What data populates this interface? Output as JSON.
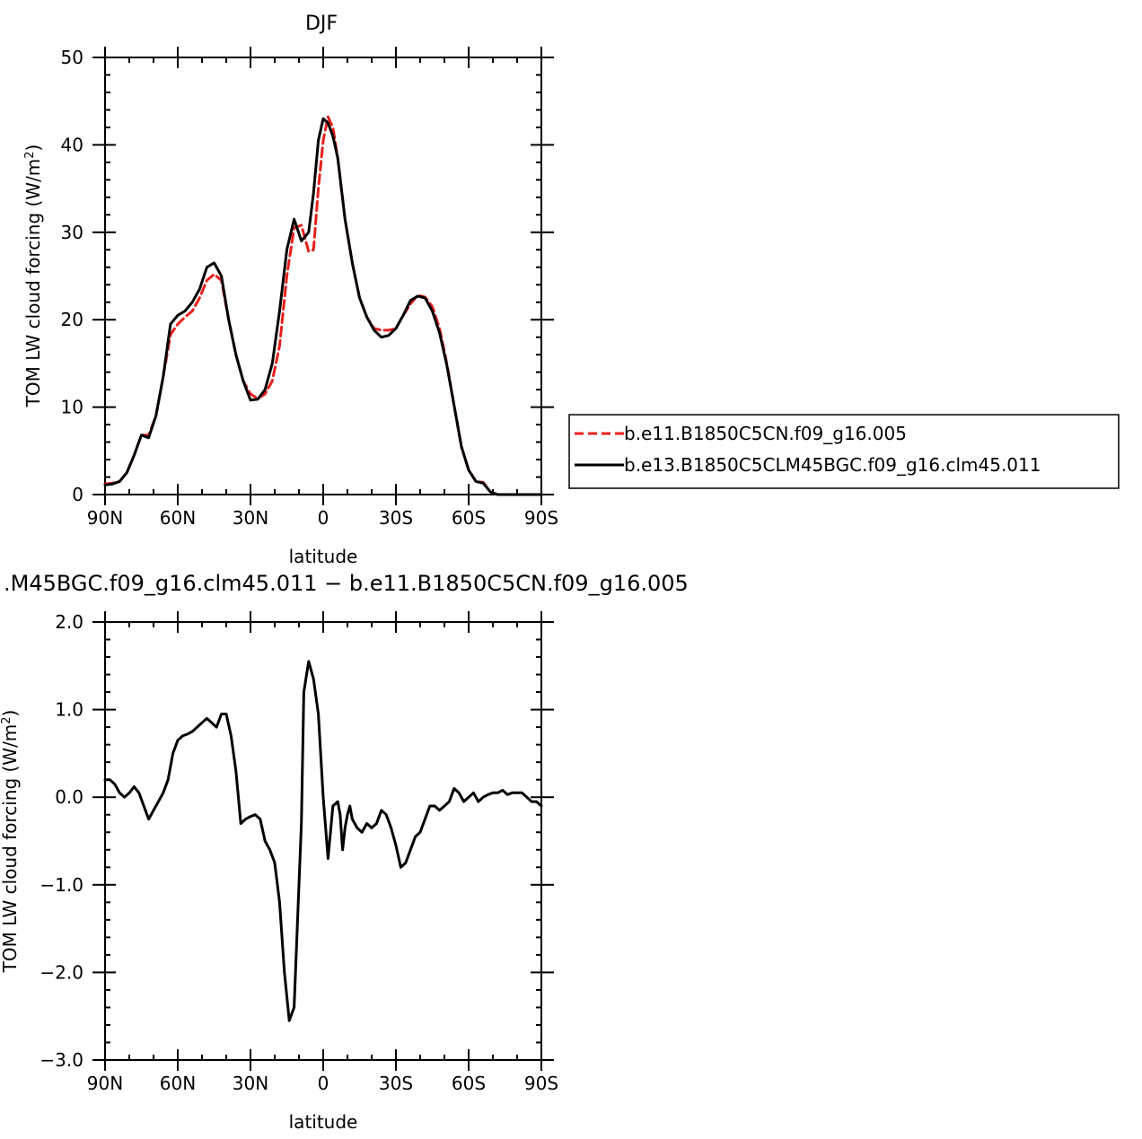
{
  "chart_data": [
    {
      "type": "line",
      "title": "DJF",
      "xlabel": "latitude",
      "ylabel": "TOM LW cloud forcing (W/m",
      "ylabel_sup": "2",
      "ylabel_close": ")",
      "xlim": [
        90,
        -90
      ],
      "ylim": [
        0,
        50
      ],
      "xticks": [
        {
          "value": 90,
          "label": "90N"
        },
        {
          "value": 60,
          "label": "60N"
        },
        {
          "value": 30,
          "label": "30N"
        },
        {
          "value": 0,
          "label": "0"
        },
        {
          "value": -30,
          "label": "30S"
        },
        {
          "value": -60,
          "label": "60S"
        },
        {
          "value": -90,
          "label": "90S"
        }
      ],
      "yticks": [
        {
          "value": 0,
          "label": "0"
        },
        {
          "value": 10,
          "label": "10"
        },
        {
          "value": 20,
          "label": "20"
        },
        {
          "value": 30,
          "label": "30"
        },
        {
          "value": 40,
          "label": "40"
        },
        {
          "value": 50,
          "label": "50"
        }
      ],
      "legend_position": "right",
      "series": [
        {
          "name": "b.e11.B1850C5CN.f09_g16.005",
          "color": "#e8201c",
          "style": "dashed",
          "x": [
            90,
            87,
            84,
            81,
            78,
            75,
            72,
            69,
            66,
            63,
            60,
            57,
            54,
            51,
            48,
            45,
            42,
            39,
            36,
            33,
            30,
            27,
            24,
            21,
            18,
            15,
            12,
            9,
            6,
            4,
            2,
            0,
            -2,
            -4,
            -6,
            -9,
            -12,
            -15,
            -18,
            -21,
            -24,
            -27,
            -30,
            -33,
            -36,
            -39,
            -42,
            -45,
            -48,
            -51,
            -54,
            -57,
            -60,
            -63,
            -66,
            -69,
            -72,
            -75,
            -78,
            -81,
            -84,
            -87,
            -90
          ],
          "y": [
            1.2,
            1.3,
            1.5,
            2.5,
            4.5,
            6.8,
            6.8,
            9,
            13.5,
            18.3,
            19.5,
            20.3,
            21,
            22.5,
            24.5,
            25.2,
            24.5,
            20,
            16,
            13,
            11.5,
            11,
            11.5,
            13,
            17,
            25,
            30.5,
            30.8,
            27.8,
            28,
            35,
            40.5,
            43.2,
            42,
            38.5,
            31.5,
            26.5,
            22.5,
            20.3,
            19,
            18.8,
            18.8,
            19,
            20.5,
            21.8,
            22.8,
            22.6,
            21.5,
            19,
            15,
            10.2,
            5.5,
            2.8,
            1.5,
            1.4,
            0.3,
            0.0,
            0.0,
            0.0,
            0.0,
            0.0,
            0.0,
            0.0
          ]
        },
        {
          "name": "b.e13.B1850C5CLM45BGC.f09_g16.clm45.011",
          "color": "#000000",
          "style": "solid",
          "x": [
            90,
            87,
            84,
            81,
            78,
            75,
            72,
            69,
            66,
            63,
            60,
            57,
            54,
            51,
            48,
            45,
            42,
            39,
            36,
            33,
            30,
            27,
            24,
            21,
            18,
            15,
            12,
            9,
            6,
            4,
            2,
            0,
            -2,
            -4,
            -6,
            -9,
            -12,
            -15,
            -18,
            -21,
            -24,
            -27,
            -30,
            -33,
            -36,
            -39,
            -42,
            -45,
            -48,
            -51,
            -54,
            -57,
            -60,
            -63,
            -66,
            -69,
            -72,
            -75,
            -78,
            -81,
            -84,
            -87,
            -90
          ],
          "y": [
            1.1,
            1.2,
            1.5,
            2.5,
            4.5,
            6.8,
            6.5,
            9,
            13.5,
            19.5,
            20.5,
            21,
            22,
            23.5,
            26,
            26.5,
            25,
            20,
            16,
            13,
            10.8,
            10.9,
            12,
            15,
            21,
            28,
            31.5,
            29,
            30,
            34.5,
            40.5,
            43,
            42.5,
            41,
            38.5,
            31.5,
            26.5,
            22.5,
            20.3,
            18.8,
            18,
            18.2,
            19,
            20.5,
            22.2,
            22.7,
            22.5,
            21,
            18.5,
            14.8,
            10.2,
            5.5,
            2.8,
            1.5,
            1.3,
            0.3,
            0.0,
            0.0,
            0.0,
            0.0,
            0.0,
            0.0,
            0.0
          ]
        }
      ]
    },
    {
      "type": "line",
      "title": ".M45BGC.f09_g16.clm45.011 − b.e11.B1850C5CN.f09_g16.005",
      "xlabel": "latitude",
      "ylabel": "TOM LW cloud forcing (W/m",
      "ylabel_sup": "2",
      "ylabel_close": ")",
      "xlim": [
        90,
        -90
      ],
      "ylim": [
        -3,
        2
      ],
      "xticks": [
        {
          "value": 90,
          "label": "90N"
        },
        {
          "value": 60,
          "label": "60N"
        },
        {
          "value": 30,
          "label": "30N"
        },
        {
          "value": 0,
          "label": "0"
        },
        {
          "value": -30,
          "label": "30S"
        },
        {
          "value": -60,
          "label": "60S"
        },
        {
          "value": -90,
          "label": "90S"
        }
      ],
      "yticks": [
        {
          "value": -3,
          "label": "−3.0"
        },
        {
          "value": -2,
          "label": "−2.0"
        },
        {
          "value": -1,
          "label": "−1.0"
        },
        {
          "value": 0,
          "label": "0.0"
        },
        {
          "value": 1,
          "label": "1.0"
        },
        {
          "value": 2,
          "label": "2.0"
        }
      ],
      "series": [
        {
          "color": "#000000",
          "style": "solid",
          "x": [
            90,
            88,
            86,
            84,
            82,
            80,
            78,
            76,
            74,
            72,
            70,
            68,
            66,
            64,
            62,
            60,
            58,
            56,
            54,
            52,
            50,
            48,
            46,
            44,
            42,
            40,
            38,
            36,
            34,
            32,
            30,
            28,
            26,
            24,
            22,
            20,
            18,
            16,
            14,
            12,
            10,
            9,
            8,
            6,
            4,
            2,
            0,
            -2,
            -4,
            -6,
            -7,
            -8,
            -9,
            -10,
            -11,
            -12,
            -14,
            -16,
            -18,
            -20,
            -22,
            -24,
            -26,
            -28,
            -30,
            -32,
            -34,
            -36,
            -38,
            -40,
            -42,
            -44,
            -46,
            -48,
            -50,
            -52,
            -54,
            -56,
            -58,
            -60,
            -62,
            -64,
            -66,
            -68,
            -70,
            -72,
            -74,
            -76,
            -78,
            -80,
            -82,
            -84,
            -86,
            -88,
            -90
          ],
          "y": [
            0.2,
            0.2,
            0.15,
            0.05,
            0.0,
            0.05,
            0.12,
            0.05,
            -0.1,
            -0.25,
            -0.15,
            -0.05,
            0.05,
            0.2,
            0.5,
            0.65,
            0.7,
            0.72,
            0.75,
            0.8,
            0.85,
            0.9,
            0.85,
            0.8,
            0.95,
            0.95,
            0.7,
            0.3,
            -0.3,
            -0.25,
            -0.22,
            -0.2,
            -0.25,
            -0.5,
            -0.6,
            -0.75,
            -1.2,
            -2.0,
            -2.55,
            -2.4,
            -1.0,
            -0.3,
            1.2,
            1.55,
            1.35,
            0.95,
            0.0,
            -0.7,
            -0.1,
            -0.05,
            -0.2,
            -0.6,
            -0.35,
            -0.2,
            -0.1,
            -0.25,
            -0.35,
            -0.4,
            -0.3,
            -0.35,
            -0.3,
            -0.15,
            -0.2,
            -0.35,
            -0.55,
            -0.8,
            -0.75,
            -0.6,
            -0.45,
            -0.4,
            -0.25,
            -0.1,
            -0.1,
            -0.15,
            -0.1,
            -0.05,
            0.1,
            0.05,
            -0.05,
            0.0,
            0.05,
            -0.05,
            0.0,
            0.03,
            0.05,
            0.05,
            0.08,
            0.03,
            0.05,
            0.05,
            0.05,
            0.0,
            -0.05,
            -0.05,
            -0.1
          ]
        }
      ]
    }
  ]
}
